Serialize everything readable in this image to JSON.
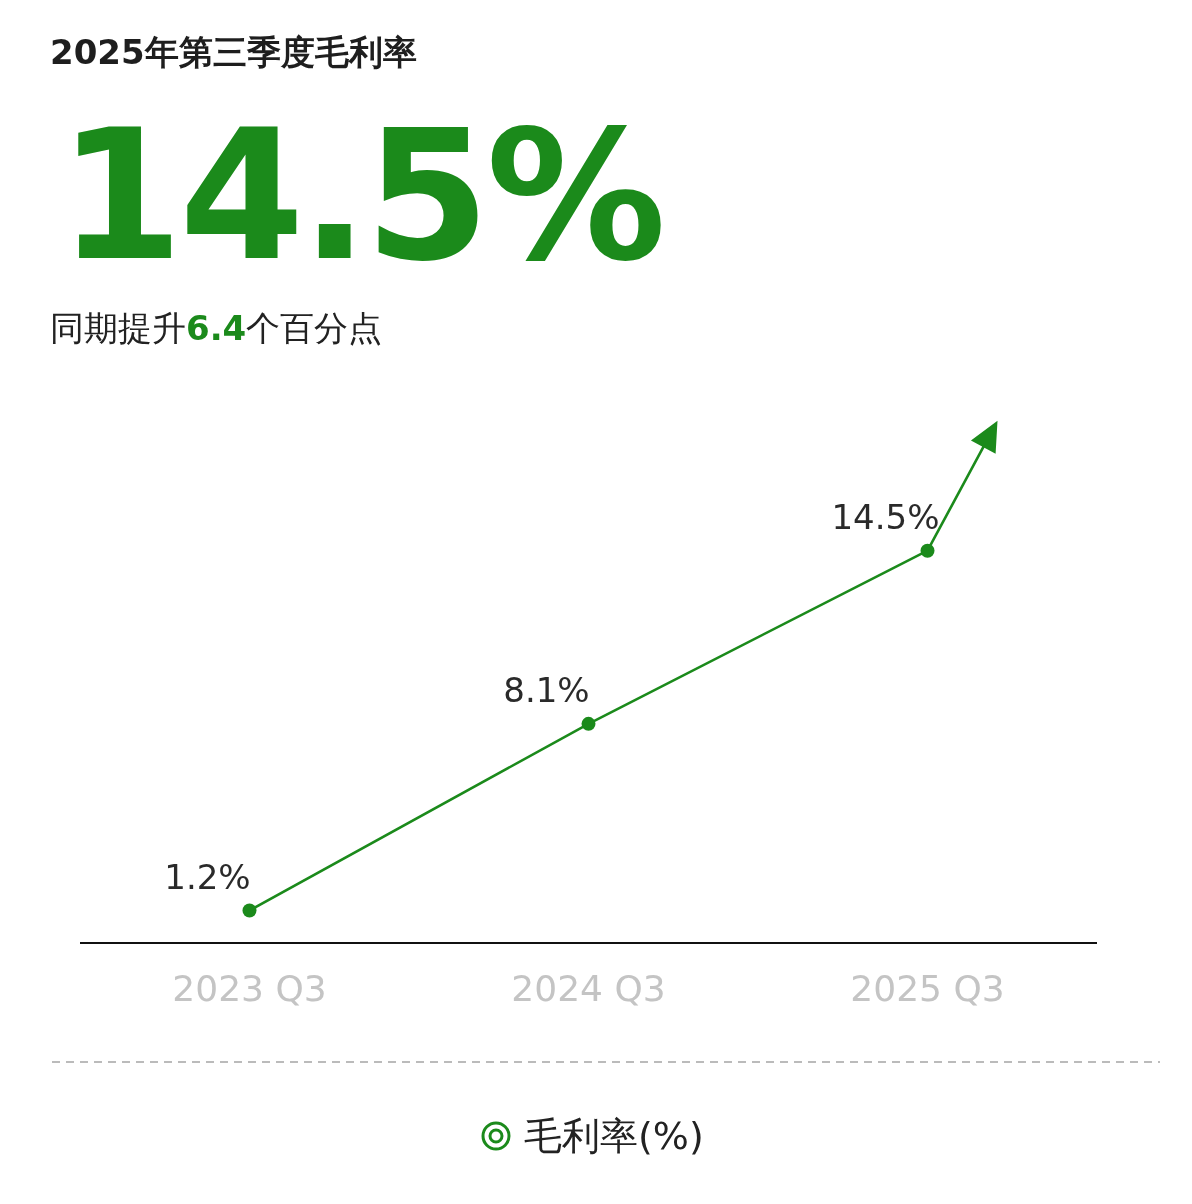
{
  "chart_data": {
    "type": "line",
    "title": "2025年第三季度毛利率",
    "annotations": [
      "14.5%",
      "同期提升**6.4**个百分点"
    ],
    "categories": [
      "2023 Q3",
      "2024 Q3",
      "2025 Q3"
    ],
    "series": [
      {
        "name": "毛利率(%)",
        "color": "#1b8a1b",
        "values": [
          1.2,
          8.1,
          14.5
        ],
        "value_labels": [
          "1.2%",
          "8.1%",
          "14.5%"
        ]
      }
    ],
    "marker": "circle",
    "line_style": "solid",
    "legend": "bottom"
  }
}
